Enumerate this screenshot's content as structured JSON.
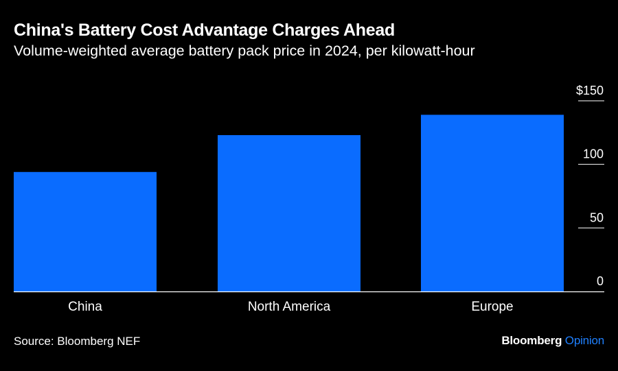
{
  "title": "China's Battery Cost Advantage Charges Ahead",
  "subtitle": "Volume-weighted average battery pack price in 2024, per kilowatt-hour",
  "source": "Source: Bloomberg NEF",
  "brand": {
    "name": "Bloomberg",
    "section": "Opinion"
  },
  "colors": {
    "bar": "#0a6cff",
    "background": "#000000",
    "axis": "#ffffff",
    "brand_accent": "#1f80ff"
  },
  "chart_data": {
    "type": "bar",
    "categories": [
      "China",
      "North America",
      "Europe"
    ],
    "values": [
      94,
      123,
      139
    ],
    "ylim": [
      0,
      150
    ],
    "yticks": [
      0,
      50,
      100,
      150
    ],
    "ytick_labels": [
      "0",
      "50",
      "100",
      "$150"
    ],
    "y_axis_side": "right",
    "grid": false
  }
}
